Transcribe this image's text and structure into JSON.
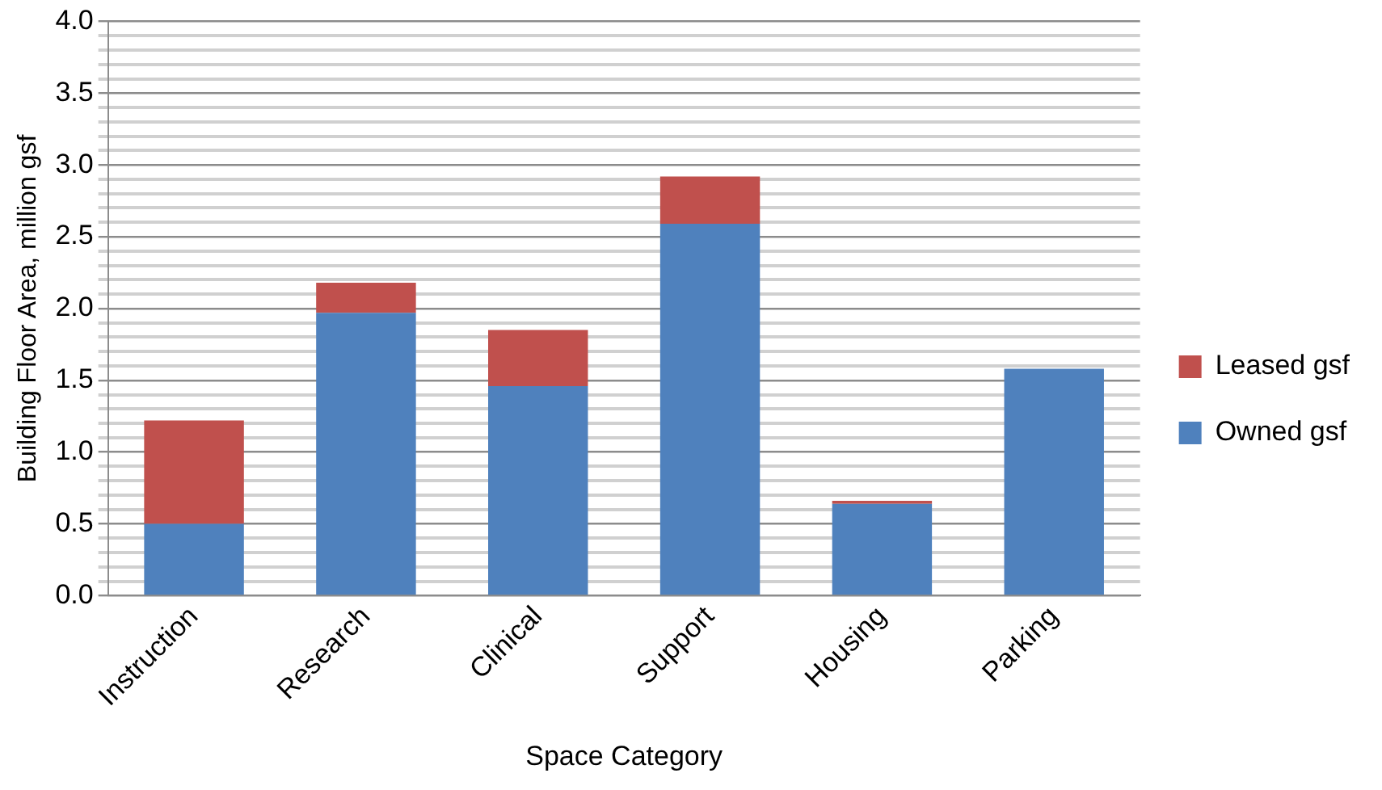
{
  "chart_data": {
    "type": "bar",
    "xlabel": "Space Category",
    "ylabel": "Building Floor Area, million gsf",
    "categories": [
      "Instruction",
      "Research",
      "Clinical",
      "Support",
      "Housing",
      "Parking"
    ],
    "stacked": true,
    "series": [
      {
        "name": "Owned gsf",
        "color": "#4f81bd",
        "values": [
          0.5,
          1.97,
          1.46,
          2.59,
          0.64,
          1.58
        ]
      },
      {
        "name": "Leased gsf",
        "color": "#c0504d",
        "values": [
          0.72,
          0.21,
          0.39,
          0.33,
          0.02,
          0
        ]
      }
    ],
    "ylim": [
      0,
      4
    ],
    "yticks": [
      {
        "value": 0,
        "label": "0.0"
      },
      {
        "value": 0.1,
        "label": null
      },
      {
        "value": 0.2,
        "label": null
      },
      {
        "value": 0.3,
        "label": null
      },
      {
        "value": 0.4,
        "label": null
      },
      {
        "value": 0.5,
        "label": "0.5"
      },
      {
        "value": 0.6,
        "label": null
      },
      {
        "value": 0.7,
        "label": null
      },
      {
        "value": 0.8,
        "label": null
      },
      {
        "value": 0.9,
        "label": null
      },
      {
        "value": 1,
        "label": "1.0"
      },
      {
        "value": 1.1,
        "label": null
      },
      {
        "value": 1.2,
        "label": null
      },
      {
        "value": 1.3,
        "label": null
      },
      {
        "value": 1.4,
        "label": null
      },
      {
        "value": 1.5,
        "label": "1.5"
      },
      {
        "value": 1.6,
        "label": null
      },
      {
        "value": 1.7,
        "label": null
      },
      {
        "value": 1.8,
        "label": null
      },
      {
        "value": 1.9,
        "label": null
      },
      {
        "value": 2,
        "label": "2.0"
      },
      {
        "value": 2.1,
        "label": null
      },
      {
        "value": 2.2,
        "label": null
      },
      {
        "value": 2.3,
        "label": null
      },
      {
        "value": 2.4,
        "label": null
      },
      {
        "value": 2.5,
        "label": "2.5"
      },
      {
        "value": 2.6,
        "label": null
      },
      {
        "value": 2.7,
        "label": null
      },
      {
        "value": 2.8,
        "label": null
      },
      {
        "value": 2.9,
        "label": null
      },
      {
        "value": 3,
        "label": "3.0"
      },
      {
        "value": 3.1,
        "label": null
      },
      {
        "value": 3.2,
        "label": null
      },
      {
        "value": 3.3,
        "label": null
      },
      {
        "value": 3.4,
        "label": null
      },
      {
        "value": 3.5,
        "label": "3.5"
      },
      {
        "value": 3.6,
        "label": null
      },
      {
        "value": 3.7,
        "label": null
      },
      {
        "value": 3.8,
        "label": null
      },
      {
        "value": 3.9,
        "label": null
      },
      {
        "value": 4,
        "label": "4.0"
      }
    ],
    "grid": "y",
    "legend": "right"
  }
}
